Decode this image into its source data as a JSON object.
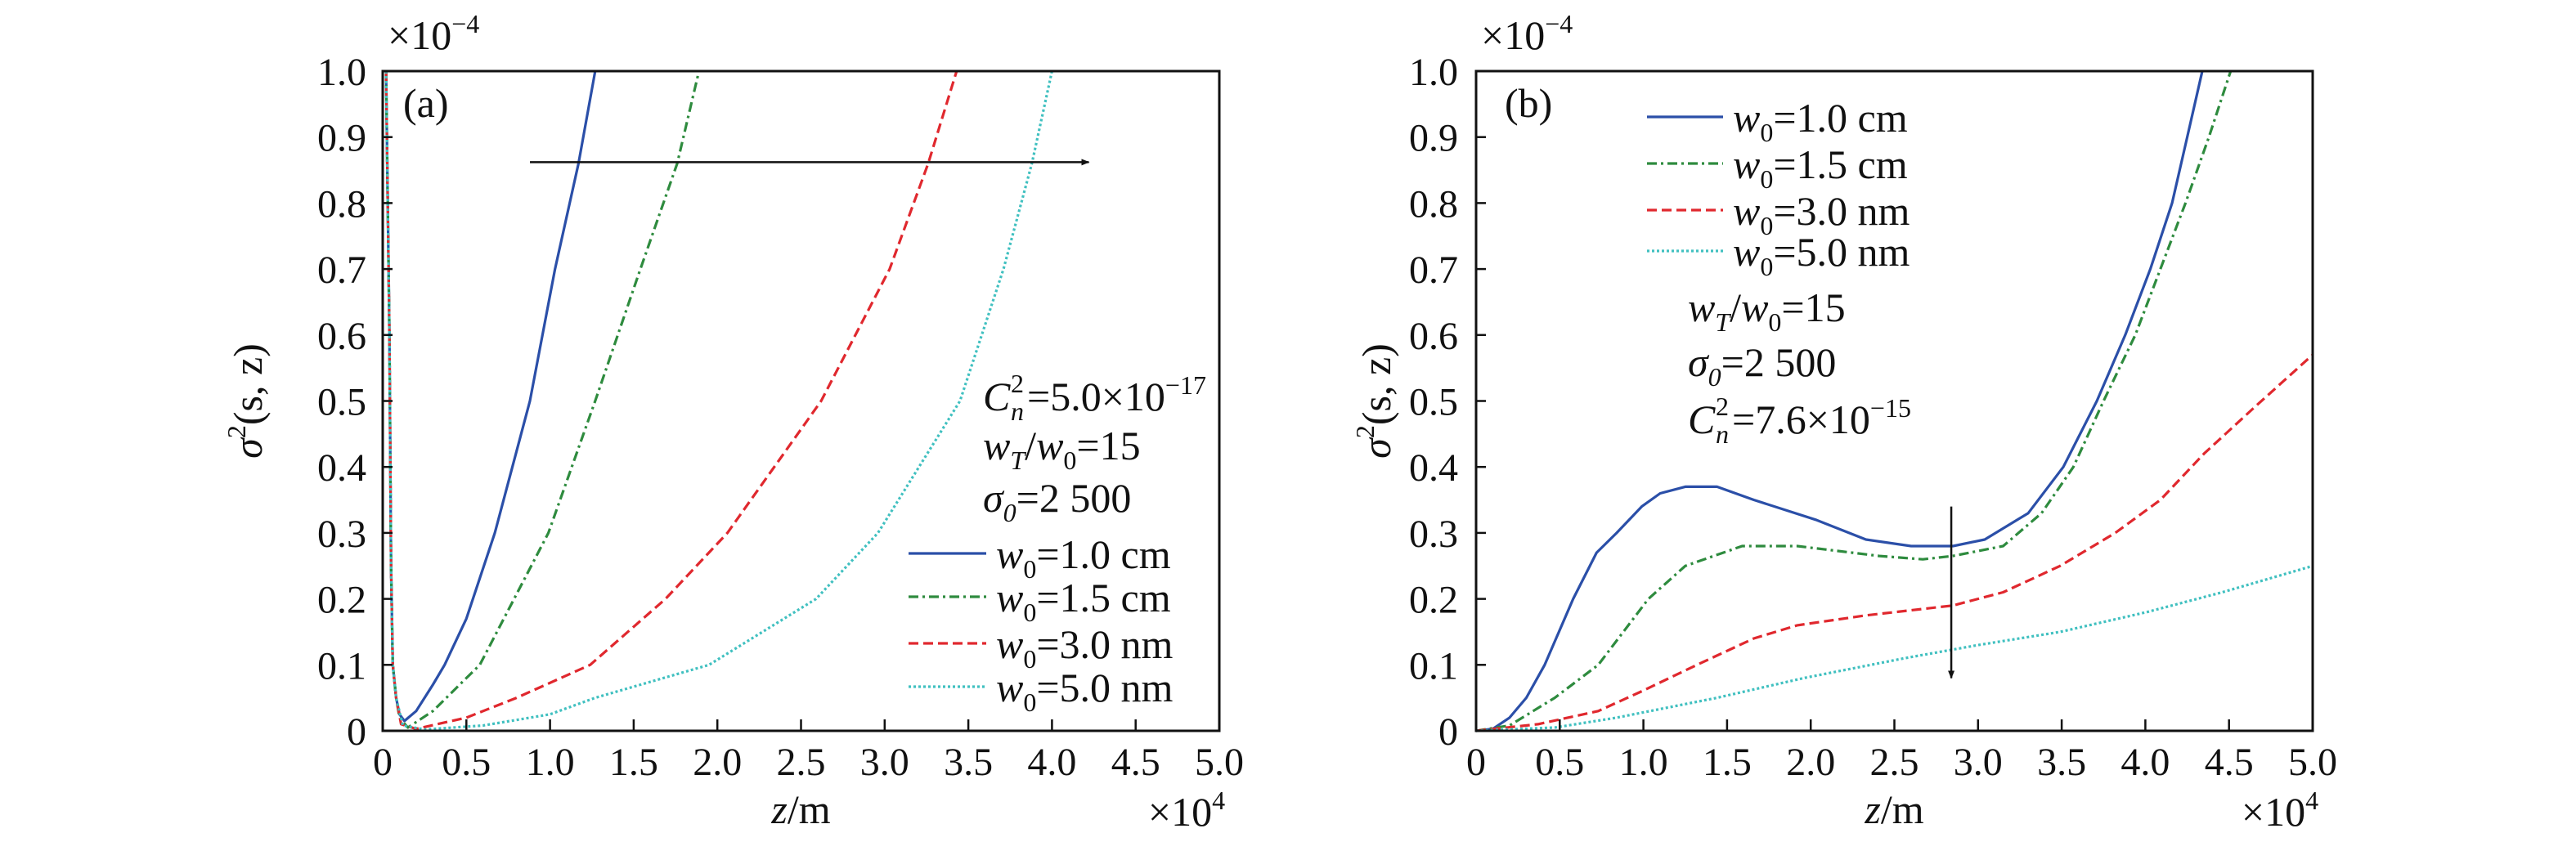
{
  "chart_data": [
    {
      "type": "line",
      "panel_label": "(a)",
      "xlabel": {
        "var": "z",
        "unit": "/m"
      },
      "ylabel": {
        "var": "σ",
        "sup": "2",
        "args": "(s, z)"
      },
      "x_multiplier": {
        "base": "×10",
        "exp": "4"
      },
      "y_multiplier": {
        "base": "×10",
        "exp": "−4"
      },
      "xlim": [
        0,
        5.0
      ],
      "ylim": [
        0,
        1.0
      ],
      "xticks": [
        "0",
        "0.5",
        "1.0",
        "1.5",
        "2.0",
        "2.5",
        "3.0",
        "3.5",
        "4.0",
        "4.5",
        "5.0"
      ],
      "yticks": [
        "0",
        "0.1",
        "0.2",
        "0.3",
        "0.4",
        "0.5",
        "0.6",
        "0.7",
        "0.8",
        "0.9",
        "1.0"
      ],
      "grid": false,
      "legend_placement": "bottom-right",
      "annotations": [
        {
          "main": "C",
          "sub": "n",
          "sup": "2",
          "rest": "=5.0×10",
          "exp": "−17"
        },
        {
          "main": "w",
          "sub": "T",
          "rest": "/",
          "main2": "w",
          "sub2": "0",
          "rest2": "=15"
        },
        {
          "main": "σ",
          "sub": "0",
          "rest": "=2 500"
        }
      ],
      "arrow": {
        "direction": "right",
        "from": [
          0.88,
          0.862
        ],
        "to": [
          4.22,
          0.862
        ]
      },
      "series": [
        {
          "name": {
            "var": "w",
            "sub": "0",
            "value": "=1.0 cm"
          },
          "color": "#2b4fa8",
          "style": "solid",
          "points": [
            [
              0.02,
              1.0
            ],
            [
              0.04,
              0.6
            ],
            [
              0.05,
              0.25
            ],
            [
              0.06,
              0.1
            ],
            [
              0.08,
              0.05
            ],
            [
              0.1,
              0.025
            ],
            [
              0.13,
              0.015
            ],
            [
              0.2,
              0.03
            ],
            [
              0.3,
              0.07
            ],
            [
              0.37,
              0.1
            ],
            [
              0.5,
              0.17
            ],
            [
              0.67,
              0.3
            ],
            [
              0.88,
              0.5
            ],
            [
              1.03,
              0.7
            ],
            [
              1.17,
              0.86
            ],
            [
              1.27,
              1.0
            ]
          ]
        },
        {
          "name": {
            "var": "w",
            "sub": "0",
            "value": "=1.5 cm"
          },
          "color": "#2e8b3e",
          "style": "dashdot",
          "points": [
            [
              0.02,
              1.0
            ],
            [
              0.04,
              0.6
            ],
            [
              0.05,
              0.25
            ],
            [
              0.06,
              0.1
            ],
            [
              0.08,
              0.05
            ],
            [
              0.1,
              0.02
            ],
            [
              0.15,
              0.005
            ],
            [
              0.3,
              0.03
            ],
            [
              0.58,
              0.1
            ],
            [
              0.99,
              0.3
            ],
            [
              1.27,
              0.5
            ],
            [
              1.54,
              0.7
            ],
            [
              1.76,
              0.86
            ],
            [
              1.89,
              1.0
            ]
          ]
        },
        {
          "name": {
            "var": "w",
            "sub": "0",
            "value": "=3.0 nm"
          },
          "color": "#e0282e",
          "style": "dashed",
          "points": [
            [
              0.02,
              1.0
            ],
            [
              0.04,
              0.6
            ],
            [
              0.05,
              0.25
            ],
            [
              0.06,
              0.1
            ],
            [
              0.08,
              0.05
            ],
            [
              0.11,
              0.01
            ],
            [
              0.2,
              0.003
            ],
            [
              0.5,
              0.02
            ],
            [
              0.8,
              0.05
            ],
            [
              1.24,
              0.1
            ],
            [
              1.69,
              0.2
            ],
            [
              2.06,
              0.3
            ],
            [
              2.62,
              0.5
            ],
            [
              3.03,
              0.7
            ],
            [
              3.26,
              0.86
            ],
            [
              3.43,
              1.0
            ]
          ]
        },
        {
          "name": {
            "var": "w",
            "sub": "0",
            "value": "=5.0 nm"
          },
          "color": "#40c0c0",
          "style": "dotted",
          "points": [
            [
              0.02,
              1.0
            ],
            [
              0.04,
              0.6
            ],
            [
              0.05,
              0.25
            ],
            [
              0.06,
              0.1
            ],
            [
              0.08,
              0.05
            ],
            [
              0.12,
              0.008
            ],
            [
              0.25,
              0.002
            ],
            [
              0.6,
              0.008
            ],
            [
              1.0,
              0.025
            ],
            [
              1.27,
              0.05
            ],
            [
              1.95,
              0.1
            ],
            [
              2.59,
              0.2
            ],
            [
              2.96,
              0.3
            ],
            [
              3.45,
              0.5
            ],
            [
              3.71,
              0.7
            ],
            [
              3.88,
              0.86
            ],
            [
              4.0,
              1.0
            ]
          ]
        }
      ]
    },
    {
      "type": "line",
      "panel_label": "(b)",
      "xlabel": {
        "var": "z",
        "unit": "/m"
      },
      "ylabel": {
        "var": "σ",
        "sup": "2",
        "args": "(s, z)"
      },
      "x_multiplier": {
        "base": "×10",
        "exp": "4"
      },
      "y_multiplier": {
        "base": "×10",
        "exp": "−4"
      },
      "xlim": [
        0,
        5.0
      ],
      "ylim": [
        0,
        1.0
      ],
      "xticks": [
        "0",
        "0.5",
        "1.0",
        "1.5",
        "2.0",
        "2.5",
        "3.0",
        "3.5",
        "4.0",
        "4.5",
        "5.0"
      ],
      "yticks": [
        "0",
        "0.1",
        "0.2",
        "0.3",
        "0.4",
        "0.5",
        "0.6",
        "0.7",
        "0.8",
        "0.9",
        "1.0"
      ],
      "grid": false,
      "legend_placement": "top-left",
      "annotations": [
        {
          "main": "w",
          "sub": "T",
          "rest": "/",
          "main2": "w",
          "sub2": "0",
          "rest2": "=15"
        },
        {
          "main": "σ",
          "sub": "0",
          "rest": "=2 500"
        },
        {
          "main": "C",
          "sub": "n",
          "sup": "2",
          "rest": "=7.6×10",
          "exp": "−15"
        }
      ],
      "arrow": {
        "direction": "down",
        "from": [
          2.84,
          0.34
        ],
        "to": [
          2.84,
          0.08
        ]
      },
      "series": [
        {
          "name": {
            "var": "w",
            "sub": "0",
            "value": "=1.0 cm"
          },
          "color": "#2b4fa8",
          "style": "solid",
          "points": [
            [
              0,
              0
            ],
            [
              0.1,
              0.003
            ],
            [
              0.2,
              0.02
            ],
            [
              0.3,
              0.05
            ],
            [
              0.41,
              0.1
            ],
            [
              0.58,
              0.2
            ],
            [
              0.72,
              0.27
            ],
            [
              0.84,
              0.3
            ],
            [
              0.99,
              0.34
            ],
            [
              1.1,
              0.36
            ],
            [
              1.25,
              0.37
            ],
            [
              1.44,
              0.37
            ],
            [
              1.66,
              0.35
            ],
            [
              2.03,
              0.32
            ],
            [
              2.33,
              0.29
            ],
            [
              2.6,
              0.28
            ],
            [
              2.85,
              0.28
            ],
            [
              3.04,
              0.29
            ],
            [
              3.3,
              0.33
            ],
            [
              3.51,
              0.4
            ],
            [
              3.71,
              0.5
            ],
            [
              3.88,
              0.6
            ],
            [
              4.03,
              0.7
            ],
            [
              4.16,
              0.8
            ],
            [
              4.25,
              0.9
            ],
            [
              4.34,
              1.0
            ]
          ]
        },
        {
          "name": {
            "var": "w",
            "sub": "0",
            "value": "=1.5 cm"
          },
          "color": "#2e8b3e",
          "style": "dashdot",
          "points": [
            [
              0,
              0
            ],
            [
              0.2,
              0.008
            ],
            [
              0.47,
              0.05
            ],
            [
              0.73,
              0.1
            ],
            [
              1.03,
              0.2
            ],
            [
              1.25,
              0.25
            ],
            [
              1.59,
              0.28
            ],
            [
              1.92,
              0.28
            ],
            [
              2.41,
              0.265
            ],
            [
              2.67,
              0.26
            ],
            [
              2.85,
              0.265
            ],
            [
              3.15,
              0.28
            ],
            [
              3.38,
              0.33
            ],
            [
              3.57,
              0.4
            ],
            [
              3.75,
              0.5
            ],
            [
              3.94,
              0.6
            ],
            [
              4.09,
              0.7
            ],
            [
              4.24,
              0.8
            ],
            [
              4.38,
              0.9
            ],
            [
              4.51,
              1.0
            ]
          ]
        },
        {
          "name": {
            "var": "w",
            "sub": "0",
            "value": "=3.0 nm"
          },
          "color": "#e0282e",
          "style": "dashed",
          "points": [
            [
              0,
              0
            ],
            [
              0.37,
              0.01
            ],
            [
              0.73,
              0.03
            ],
            [
              0.99,
              0.06
            ],
            [
              1.32,
              0.1
            ],
            [
              1.66,
              0.14
            ],
            [
              1.92,
              0.16
            ],
            [
              2.33,
              0.175
            ],
            [
              2.85,
              0.19
            ],
            [
              3.15,
              0.21
            ],
            [
              3.49,
              0.25
            ],
            [
              3.82,
              0.3
            ],
            [
              4.09,
              0.35
            ],
            [
              4.35,
              0.42
            ],
            [
              4.65,
              0.49
            ],
            [
              5.0,
              0.57
            ]
          ]
        },
        {
          "name": {
            "var": "w",
            "sub": "0",
            "value": "=5.0 nm"
          },
          "color": "#40c0c0",
          "style": "dotted",
          "points": [
            [
              0,
              0
            ],
            [
              0.47,
              0.005
            ],
            [
              0.84,
              0.02
            ],
            [
              1.44,
              0.05
            ],
            [
              1.96,
              0.08
            ],
            [
              2.56,
              0.11
            ],
            [
              3.0,
              0.13
            ],
            [
              3.49,
              0.15
            ],
            [
              4.01,
              0.18
            ],
            [
              4.46,
              0.21
            ],
            [
              5.0,
              0.25
            ]
          ]
        }
      ]
    }
  ]
}
